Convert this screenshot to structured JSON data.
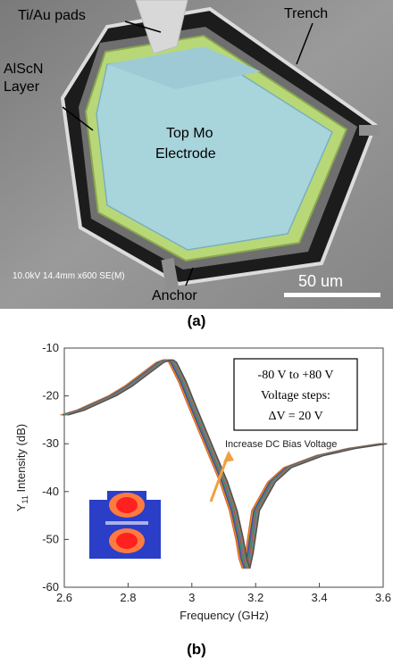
{
  "panel_a": {
    "caption": "(a)",
    "labels": {
      "pads": "Ti/Au pads",
      "trench": "Trench",
      "alscn_line1": "AlScN",
      "alscn_line2": "Layer",
      "electrode_line1": "Top Mo",
      "electrode_line2": "Electrode",
      "anchor": "Anchor",
      "sem_info": "10.0kV 14.4mm x600 SE(M)",
      "scale_bar": "50 um"
    },
    "colors": {
      "electrode": "#a8d4dc",
      "alscn": "#b8d878",
      "background": "#8a8a8a"
    }
  },
  "panel_b": {
    "caption": "(b)",
    "legend_box": {
      "line1": "-80 V to +80 V",
      "line2": "Voltage steps:",
      "line3": "ΔV = 20 V"
    },
    "annotation": "Increase DC Bias Voltage",
    "ylabel_main": "Y",
    "ylabel_sub": "11",
    "ylabel_rest": " Intensity (dB)",
    "xlabel": "Frequency (GHz)",
    "arrow_color": "#f0a040"
  },
  "chart_data": {
    "type": "line",
    "xlabel": "Frequency (GHz)",
    "ylabel": "Y11 Intensity (dB)",
    "xlim": [
      2.6,
      3.6
    ],
    "ylim": [
      -60,
      -10
    ],
    "x_ticks": [
      "2.6",
      "2.8",
      "3",
      "3.2",
      "3.4",
      "3.6"
    ],
    "y_ticks": [
      "-10",
      "-20",
      "-30",
      "-40",
      "-50",
      "-60"
    ],
    "series_colors": [
      "#e05a2a",
      "#d4a020",
      "#6a3a8a",
      "#2f6ab8",
      "#4a9a4a",
      "#c04060",
      "#3aa0b0",
      "#9a6a3a",
      "#505050"
    ],
    "x": [
      2.6,
      2.65,
      2.7,
      2.75,
      2.8,
      2.85,
      2.88,
      2.9,
      2.92,
      2.93,
      2.94,
      2.97,
      3.0,
      3.05,
      3.1,
      3.13,
      3.15,
      3.16,
      3.17,
      3.18,
      3.2,
      3.25,
      3.3,
      3.4,
      3.5,
      3.6
    ],
    "base_values": [
      -24,
      -23,
      -21.5,
      -20,
      -18,
      -15.5,
      -14,
      -13,
      -12.5,
      -12.5,
      -13,
      -17,
      -22,
      -30,
      -38,
      -44,
      -50,
      -54,
      -56,
      -53,
      -44,
      -38,
      -35,
      -32.5,
      -31,
      -30
    ],
    "offsets": [
      -0.012,
      -0.009,
      -0.006,
      -0.003,
      0,
      0.003,
      0.006,
      0.009,
      0.012
    ]
  }
}
